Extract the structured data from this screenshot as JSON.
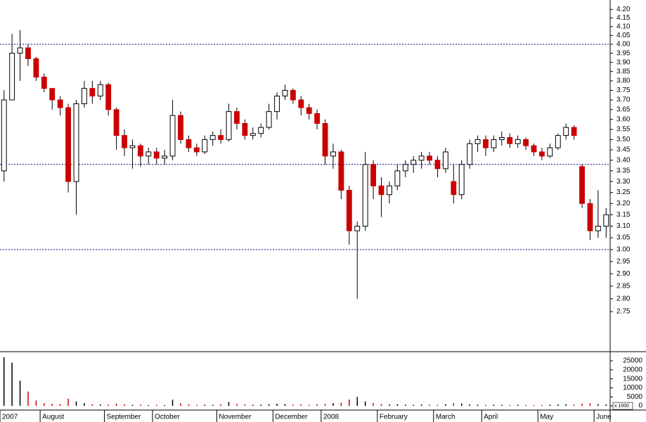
{
  "chart_data": {
    "type": "candlestick",
    "categories": [
      "2007",
      null,
      null,
      null,
      null,
      "August",
      null,
      null,
      null,
      null,
      null,
      null,
      null,
      "September",
      null,
      null,
      null,
      null,
      null,
      "October",
      null,
      null,
      null,
      null,
      null,
      null,
      null,
      "November",
      null,
      null,
      null,
      null,
      null,
      null,
      "December",
      null,
      null,
      null,
      null,
      null,
      "2008",
      null,
      null,
      null,
      null,
      null,
      null,
      "February",
      null,
      null,
      null,
      null,
      null,
      null,
      "March",
      null,
      null,
      null,
      null,
      null,
      "April",
      null,
      null,
      null,
      null,
      null,
      null,
      "May",
      null,
      null,
      null,
      null,
      null,
      null,
      "June",
      null
    ],
    "open": [
      3.35,
      3.7,
      3.95,
      3.98,
      3.92,
      3.82,
      3.76,
      3.7,
      3.66,
      3.3,
      3.68,
      3.76,
      3.72,
      3.78,
      3.65,
      3.52,
      3.46,
      3.47,
      3.42,
      3.44,
      3.41,
      3.42,
      3.62,
      3.5,
      3.46,
      3.44,
      3.5,
      3.52,
      3.5,
      3.64,
      3.58,
      3.52,
      3.53,
      3.56,
      3.64,
      3.72,
      3.75,
      3.7,
      3.66,
      3.63,
      3.58,
      3.42,
      3.44,
      3.26,
      3.08,
      3.1,
      3.38,
      3.28,
      3.24,
      3.28,
      3.35,
      3.38,
      3.4,
      3.42,
      3.4,
      3.36,
      3.3,
      3.24,
      3.38,
      3.48,
      3.5,
      3.46,
      3.5,
      3.51,
      3.48,
      3.5,
      3.47,
      3.44,
      3.42,
      3.46,
      3.52,
      3.56,
      3.37,
      3.2,
      3.08,
      3.1
    ],
    "high": [
      3.75,
      4.06,
      4.08,
      4.0,
      3.93,
      3.84,
      3.76,
      3.72,
      3.68,
      3.7,
      3.8,
      3.8,
      3.8,
      3.79,
      3.66,
      3.55,
      3.5,
      3.48,
      3.46,
      3.46,
      3.45,
      3.7,
      3.64,
      3.52,
      3.48,
      3.52,
      3.54,
      3.55,
      3.68,
      3.66,
      3.6,
      3.56,
      3.58,
      3.68,
      3.74,
      3.78,
      3.76,
      3.72,
      3.68,
      3.65,
      3.6,
      3.48,
      3.45,
      3.28,
      3.12,
      3.44,
      3.4,
      3.32,
      3.3,
      3.38,
      3.4,
      3.42,
      3.44,
      3.44,
      3.42,
      3.46,
      3.38,
      3.4,
      3.5,
      3.52,
      3.52,
      3.52,
      3.54,
      3.53,
      3.52,
      3.51,
      3.48,
      3.46,
      3.48,
      3.53,
      3.58,
      3.57,
      3.38,
      3.22,
      3.26,
      3.18
    ],
    "low": [
      3.3,
      3.7,
      3.8,
      3.88,
      3.8,
      3.74,
      3.65,
      3.62,
      3.25,
      3.15,
      3.66,
      3.68,
      3.7,
      3.62,
      3.45,
      3.42,
      3.36,
      3.37,
      3.38,
      3.38,
      3.38,
      3.4,
      3.48,
      3.44,
      3.42,
      3.43,
      3.47,
      3.48,
      3.49,
      3.55,
      3.5,
      3.5,
      3.51,
      3.55,
      3.6,
      3.7,
      3.68,
      3.62,
      3.6,
      3.55,
      3.38,
      3.36,
      3.22,
      3.02,
      2.8,
      3.08,
      3.22,
      3.14,
      3.2,
      3.26,
      3.32,
      3.34,
      3.36,
      3.38,
      3.32,
      3.34,
      3.2,
      3.22,
      3.36,
      3.44,
      3.42,
      3.44,
      3.47,
      3.46,
      3.46,
      3.45,
      3.42,
      3.4,
      3.41,
      3.45,
      3.5,
      3.5,
      3.18,
      3.04,
      3.05,
      3.05
    ],
    "close": [
      3.7,
      3.95,
      3.98,
      3.92,
      3.82,
      3.76,
      3.7,
      3.66,
      3.3,
      3.68,
      3.76,
      3.72,
      3.78,
      3.65,
      3.52,
      3.46,
      3.47,
      3.42,
      3.44,
      3.41,
      3.42,
      3.62,
      3.5,
      3.46,
      3.44,
      3.5,
      3.52,
      3.5,
      3.64,
      3.58,
      3.52,
      3.53,
      3.56,
      3.64,
      3.72,
      3.75,
      3.7,
      3.66,
      3.63,
      3.58,
      3.42,
      3.44,
      3.26,
      3.08,
      3.1,
      3.38,
      3.28,
      3.24,
      3.28,
      3.35,
      3.38,
      3.4,
      3.42,
      3.4,
      3.36,
      3.44,
      3.24,
      3.38,
      3.48,
      3.5,
      3.46,
      3.5,
      3.51,
      3.48,
      3.5,
      3.47,
      3.44,
      3.42,
      3.46,
      3.52,
      3.56,
      3.52,
      3.2,
      3.08,
      3.1,
      3.15
    ],
    "volume": [
      27000,
      24000,
      14000,
      8000,
      3000,
      1500,
      1200,
      1000,
      4000,
      2500,
      1500,
      900,
      800,
      700,
      1200,
      800,
      600,
      700,
      500,
      600,
      500,
      3500,
      1500,
      800,
      600,
      700,
      600,
      900,
      2200,
      1000,
      800,
      600,
      700,
      900,
      1200,
      1000,
      700,
      800,
      600,
      900,
      1200,
      1500,
      1800,
      3500,
      5000,
      2500,
      1500,
      1000,
      800,
      900,
      700,
      600,
      800,
      700,
      600,
      900,
      1500,
      1300,
      800,
      700,
      600,
      700,
      600,
      500,
      700,
      600,
      500,
      600,
      700,
      800,
      900,
      700,
      1200,
      1500,
      1000,
      800
    ],
    "up_color": "#ffffff",
    "down_color": "#cc0000",
    "wick_color": "#000000",
    "log_scale": true,
    "ylim": [
      2.6,
      4.256
    ],
    "yticks": [
      {
        "value": 4.2,
        "label": "4.20"
      },
      4.15,
      {
        "value": 4.1,
        "label": "4.10"
      },
      4.05,
      {
        "value": 4.0,
        "label": "4.00"
      },
      3.95,
      {
        "value": 3.9,
        "label": "3.90"
      },
      3.85,
      {
        "value": 3.8,
        "label": "3.80"
      },
      3.75,
      {
        "value": 3.7,
        "label": "3.70"
      },
      3.65,
      {
        "value": 3.6,
        "label": "3.60"
      },
      3.55,
      {
        "value": 3.5,
        "label": "3.50"
      },
      3.45,
      {
        "value": 3.4,
        "label": "3.40"
      },
      3.35,
      {
        "value": 3.3,
        "label": "3.30"
      },
      3.25,
      {
        "value": 3.2,
        "label": "3.20"
      },
      3.15,
      {
        "value": 3.1,
        "label": "3.10"
      },
      3.05,
      {
        "value": 3.0,
        "label": "3.00"
      },
      2.95,
      {
        "value": 2.9,
        "label": "2.90"
      },
      2.85,
      {
        "value": 2.8,
        "label": "2.80"
      },
      2.75
    ],
    "reference_lines": [
      4.0,
      3.38,
      3.0
    ],
    "reference_line_color": "#00008b",
    "volume_ylim": [
      -2300,
      29300
    ],
    "volume_yticks": [
      0,
      5000,
      10000,
      15000,
      20000,
      25000
    ],
    "volume_unit_label": "x 1000"
  }
}
